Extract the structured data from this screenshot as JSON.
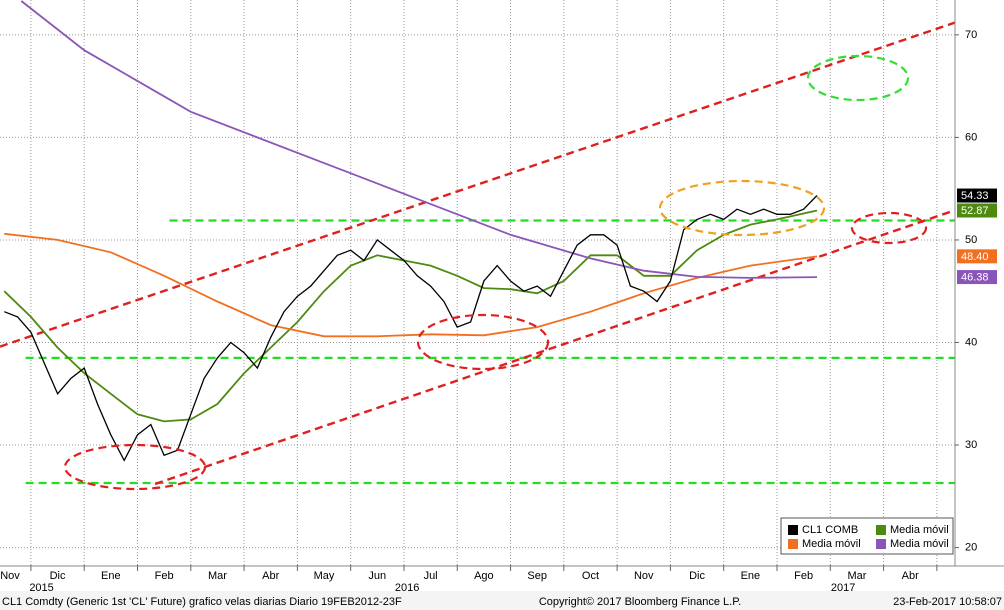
{
  "chart_data": {
    "type": "line",
    "xlim": [
      -1.58,
      16.34
    ],
    "ylim": [
      18.3,
      73.4
    ],
    "yticks": [
      20,
      30,
      40,
      50,
      60,
      70
    ],
    "xticks": [
      {
        "value": -1.5,
        "label": "Nov"
      },
      {
        "value": -0.5,
        "label": "Dic"
      },
      {
        "value": 0.5,
        "label": "Ene"
      },
      {
        "value": 1.5,
        "label": "Feb"
      },
      {
        "value": 2.5,
        "label": "Mar"
      },
      {
        "value": 3.5,
        "label": "Abr"
      },
      {
        "value": 4.5,
        "label": "May"
      },
      {
        "value": 5.5,
        "label": "Jun"
      },
      {
        "value": 6.5,
        "label": "Jul"
      },
      {
        "value": 7.5,
        "label": "Ago"
      },
      {
        "value": 8.5,
        "label": "Sep"
      },
      {
        "value": 9.5,
        "label": "Oct"
      },
      {
        "value": 10.5,
        "label": "Nov"
      },
      {
        "value": 11.5,
        "label": "Dic"
      },
      {
        "value": 12.5,
        "label": "Ene"
      },
      {
        "value": 13.5,
        "label": "Feb"
      },
      {
        "value": 14.5,
        "label": "Mar"
      },
      {
        "value": 15.5,
        "label": "Abr"
      }
    ],
    "year_labels": [
      {
        "value": -0.8,
        "label": "2015"
      },
      {
        "value": 6.06,
        "label": "2016"
      },
      {
        "value": 14.24,
        "label": "2017"
      }
    ],
    "xgrid": [
      -1,
      0,
      1,
      2,
      3,
      4,
      5,
      6,
      7,
      8,
      9,
      10,
      11,
      12,
      13,
      14,
      15,
      16
    ],
    "grid": true,
    "series": [
      {
        "name": "CL1 COMB",
        "color": "#000000",
        "last_label": "54.33",
        "x": [
          -1.5,
          -1.25,
          -1,
          -0.75,
          -0.5,
          -0.25,
          0,
          0.25,
          0.5,
          0.75,
          1,
          1.25,
          1.5,
          1.75,
          2,
          2.25,
          2.5,
          2.75,
          3,
          3.25,
          3.5,
          3.75,
          4,
          4.25,
          4.5,
          4.75,
          5,
          5.25,
          5.5,
          5.75,
          6,
          6.25,
          6.5,
          6.75,
          7,
          7.25,
          7.5,
          7.75,
          8,
          8.25,
          8.5,
          8.75,
          9,
          9.25,
          9.5,
          9.75,
          10,
          10.25,
          10.5,
          10.75,
          11,
          11.25,
          11.5,
          11.75,
          12,
          12.25,
          12.5,
          12.75,
          13,
          13.25,
          13.5,
          13.75
        ],
        "values": [
          43,
          42.5,
          41,
          38,
          35,
          36.5,
          37.5,
          34,
          31,
          28.5,
          31,
          32,
          29,
          29.5,
          33,
          36.5,
          38.5,
          40,
          39,
          37.5,
          40.5,
          43,
          44.5,
          45.5,
          47,
          48.5,
          49,
          48,
          50,
          49,
          48,
          46.5,
          45.5,
          44,
          41.5,
          42,
          46,
          47.5,
          46,
          45,
          45.5,
          44.5,
          47,
          49.5,
          50.5,
          50.5,
          49.5,
          45.5,
          45,
          44,
          46,
          51,
          52,
          52.5,
          52,
          53,
          52.5,
          53,
          52.5,
          52.5,
          53,
          54.33
        ]
      },
      {
        "name": "Media móvil",
        "color": "#4f8a10",
        "last_label": "52.87",
        "x": [
          -1.5,
          -1,
          -0.5,
          0,
          0.5,
          1,
          1.5,
          2,
          2.5,
          3,
          3.5,
          4,
          4.5,
          5,
          5.5,
          6,
          6.5,
          7,
          7.5,
          8,
          8.5,
          9,
          9.5,
          10,
          10.5,
          11,
          11.5,
          12,
          12.5,
          13,
          13.75
        ],
        "values": [
          45,
          42.5,
          39.5,
          37,
          35,
          33,
          32.3,
          32.5,
          34,
          37,
          39.5,
          42,
          45,
          47.5,
          48.5,
          48,
          47.5,
          46.5,
          45.3,
          45.2,
          44.8,
          46,
          48.5,
          48.5,
          46.5,
          46.5,
          49,
          50.5,
          51.5,
          52,
          52.87
        ]
      },
      {
        "name": "Media móvil",
        "color": "#f07020",
        "last_label": "48.40",
        "x": [
          -1.5,
          -0.5,
          0.5,
          1.5,
          2.5,
          3.5,
          4.5,
          5.5,
          6.5,
          7.5,
          8.5,
          9.5,
          10.5,
          11.5,
          12.5,
          13.75
        ],
        "values": [
          50.6,
          50,
          48.8,
          46.5,
          44,
          41.7,
          40.6,
          40.6,
          40.8,
          40.7,
          41.5,
          43,
          44.8,
          46.3,
          47.5,
          48.4
        ]
      },
      {
        "name": "Media móvil",
        "color": "#8a55b8",
        "last_label": "46.38",
        "x": [
          -1.18,
          0,
          2,
          4,
          6,
          8,
          9.5,
          10.5,
          11.5,
          12.5,
          13.75
        ],
        "values": [
          73.3,
          68.5,
          62.5,
          58.5,
          54.5,
          50.5,
          48.2,
          47,
          46.4,
          46.3,
          46.38
        ]
      }
    ],
    "trend_lines": [
      {
        "color": "#e02020",
        "x": [
          -1.58,
          16.34
        ],
        "y": [
          39.6,
          71.2
        ]
      },
      {
        "color": "#e02020",
        "x": [
          1.33,
          16.34
        ],
        "y": [
          26.2,
          52.9
        ]
      }
    ],
    "hlines": [
      {
        "color": "#22dd22",
        "y": 51.9,
        "x": [
          1.6,
          16.34
        ]
      },
      {
        "color": "#22dd22",
        "y": 38.5,
        "x": [
          -1.1,
          16.34
        ]
      },
      {
        "color": "#22dd22",
        "y": 26.3,
        "x": [
          -1.1,
          16.34
        ]
      }
    ],
    "footer": {
      "left": "CL1 Comdty (Generic 1st 'CL' Future) grafico velas diarias  Diario 19FEB2012-23F",
      "center": "Copyright© 2017 Bloomberg Finance L.P.",
      "right": "23-Feb-2017 10:58:07"
    }
  }
}
